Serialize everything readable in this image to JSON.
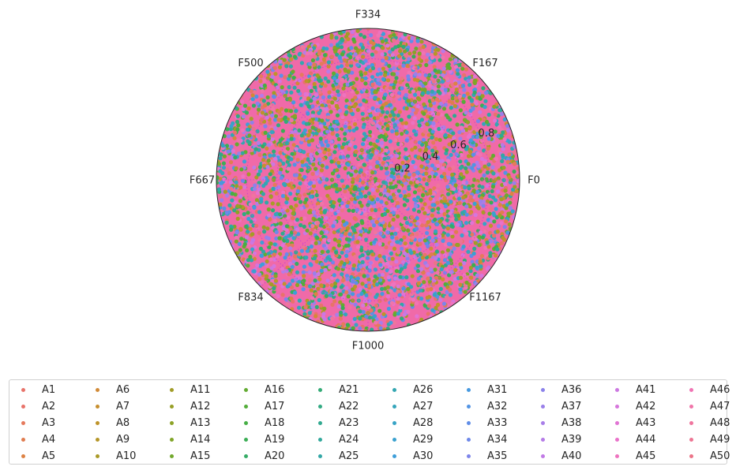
{
  "chart_data": {
    "type": "polar-scatter",
    "title": "",
    "theta_tick_labels": [
      "F0",
      "F167",
      "F334",
      "F500",
      "F667",
      "F834",
      "F1000",
      "F1167"
    ],
    "r_tick_labels": [
      "0.2",
      "0.4",
      "0.6",
      "0.8"
    ],
    "r_ticks": [
      0.2,
      0.4,
      0.6,
      0.8
    ],
    "rlim": [
      0,
      1
    ],
    "grid": true,
    "legend_position": "bottom",
    "legend_columns": 10,
    "series_names": [
      "A1",
      "A2",
      "A3",
      "A4",
      "A5",
      "A6",
      "A7",
      "A8",
      "A9",
      "A10",
      "A11",
      "A12",
      "A13",
      "A14",
      "A15",
      "A16",
      "A17",
      "A18",
      "A19",
      "A20",
      "A21",
      "A22",
      "A23",
      "A24",
      "A25",
      "A26",
      "A27",
      "A28",
      "A29",
      "A30",
      "A31",
      "A32",
      "A33",
      "A34",
      "A35",
      "A36",
      "A37",
      "A38",
      "A39",
      "A40",
      "A41",
      "A42",
      "A43",
      "A44",
      "A45",
      "A46",
      "A47",
      "A48",
      "A49",
      "A50"
    ],
    "series_colors": [
      "#e8736a",
      "#e8736a",
      "#e57a5c",
      "#e07d50",
      "#dd8244",
      "#d18a37",
      "#c78f2e",
      "#be932a",
      "#b59628",
      "#aa9a27",
      "#a19c27",
      "#979f27",
      "#8ca226",
      "#80a528",
      "#72a82c",
      "#63ab32",
      "#53ad3a",
      "#46ae45",
      "#3bad55",
      "#35ac66",
      "#33ab76",
      "#32aa83",
      "#31a990",
      "#31a89b",
      "#32a7a6",
      "#33a6b1",
      "#35a5bb",
      "#37a3c5",
      "#3aa1cf",
      "#3e9ed9",
      "#4699e0",
      "#5294e4",
      "#608de7",
      "#6e88e9",
      "#7d84ea",
      "#8b82ea",
      "#9a80e9",
      "#a87ee8",
      "#b57ce7",
      "#c17ae5",
      "#cc78e1",
      "#d676dc",
      "#e174d4",
      "#e972ca",
      "#ee73bf",
      "#f074b4",
      "#f075a9",
      "#ef759e",
      "#ed7593",
      "#eb7488"
    ]
  }
}
